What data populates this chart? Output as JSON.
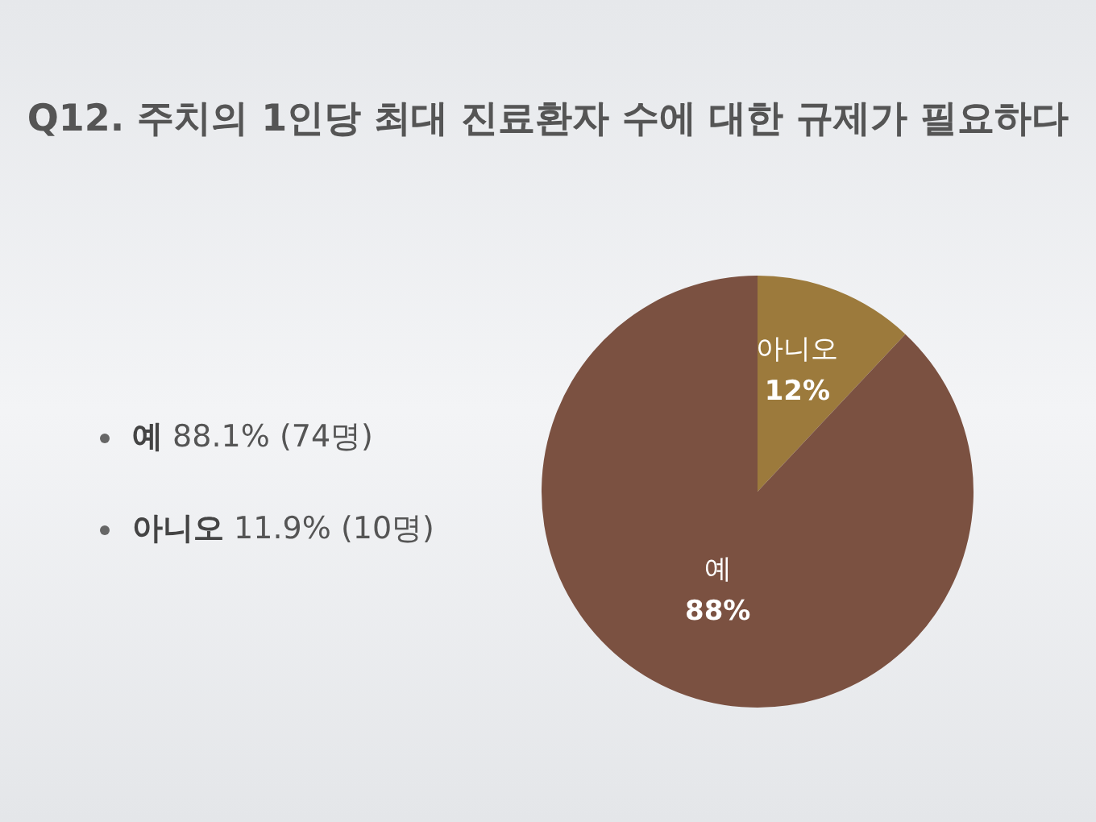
{
  "chart_data": {
    "type": "pie",
    "title": "Q12. 주치의 1인당 최대 진료환자 수에 대한 규제가 필요하다",
    "categories": [
      "아니오",
      "예"
    ],
    "values": [
      12,
      88
    ],
    "colors": [
      "#9c7a3c",
      "#7b5141"
    ],
    "value_labels": [
      "12%",
      "88%"
    ],
    "legend": false,
    "annotations": [
      "예 88.1% (74명)",
      "아니오 11.9% (10명)"
    ]
  }
}
